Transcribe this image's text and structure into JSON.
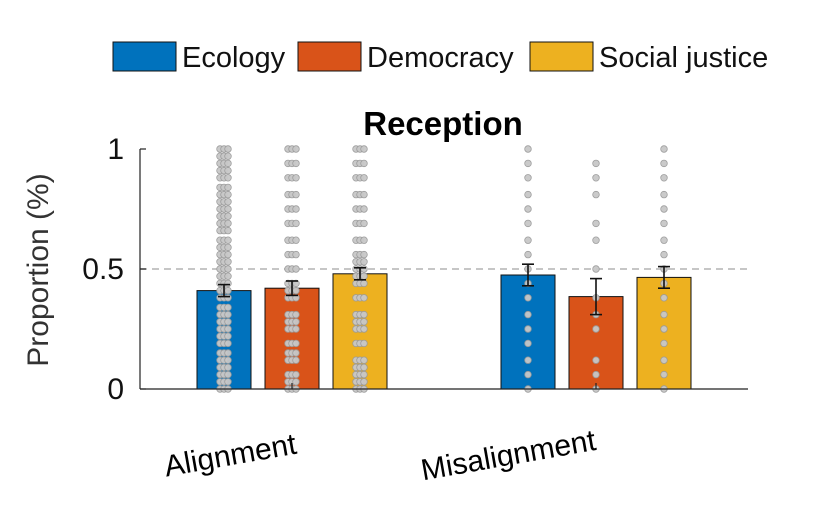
{
  "chart_data": {
    "type": "bar",
    "title": "Reception",
    "ylabel": "Proportion (%)",
    "xlabel": "",
    "ylim": [
      0,
      1
    ],
    "yticks": [
      0,
      0.5,
      1
    ],
    "ytick_labels": [
      "0",
      "0.5",
      "1"
    ],
    "reference_line": 0.5,
    "legend_position": "top",
    "categories": [
      "Alignment",
      "Misalignment"
    ],
    "series": [
      {
        "name": "Ecology",
        "color": "#0072BD",
        "values": [
          0.41,
          0.475
        ],
        "errors": [
          0.025,
          0.045
        ]
      },
      {
        "name": "Democracy",
        "color": "#D95319",
        "values": [
          0.42,
          0.385
        ],
        "errors": [
          0.03,
          0.075
        ]
      },
      {
        "name": "Social justice",
        "color": "#EDB120",
        "values": [
          0.48,
          0.465
        ],
        "errors": [
          0.025,
          0.045
        ]
      }
    ],
    "individual_points": {
      "Alignment": {
        "Ecology": [
          0,
          0.03,
          0.06,
          0.09,
          0.12,
          0.15,
          0.19,
          0.22,
          0.25,
          0.28,
          0.31,
          0.34,
          0.38,
          0.41,
          0.44,
          0.47,
          0.5,
          0.53,
          0.56,
          0.59,
          0.62,
          0.66,
          0.69,
          0.72,
          0.75,
          0.78,
          0.81,
          0.84,
          0.88,
          0.91,
          0.94,
          0.97,
          1
        ],
        "Democracy": [
          0,
          0.03,
          0.06,
          0.12,
          0.15,
          0.19,
          0.25,
          0.28,
          0.31,
          0.38,
          0.41,
          0.44,
          0.5,
          0.56,
          0.62,
          0.69,
          0.75,
          0.81,
          0.88,
          0.94,
          1
        ],
        "Social justice": [
          0,
          0.03,
          0.06,
          0.09,
          0.12,
          0.19,
          0.25,
          0.28,
          0.31,
          0.38,
          0.44,
          0.47,
          0.5,
          0.53,
          0.56,
          0.62,
          0.69,
          0.75,
          0.81,
          0.88,
          0.94,
          1
        ]
      },
      "Misalignment": {
        "Ecology": [
          0,
          0.06,
          0.12,
          0.19,
          0.25,
          0.31,
          0.38,
          0.44,
          0.5,
          0.56,
          0.62,
          0.69,
          0.75,
          0.81,
          0.88,
          0.94,
          1
        ],
        "Democracy": [
          0,
          0.06,
          0.12,
          0.25,
          0.31,
          0.38,
          0.5,
          0.62,
          0.69,
          0.81,
          0.88,
          0.94
        ],
        "Social justice": [
          0,
          0.06,
          0.12,
          0.19,
          0.25,
          0.31,
          0.38,
          0.44,
          0.5,
          0.56,
          0.62,
          0.69,
          0.75,
          0.81,
          0.88,
          0.94,
          1
        ]
      }
    }
  },
  "colors": {
    "point_fill": "#c8c8c8",
    "point_stroke": "#9a9a9a",
    "reference_line": "#b4b4b4"
  }
}
